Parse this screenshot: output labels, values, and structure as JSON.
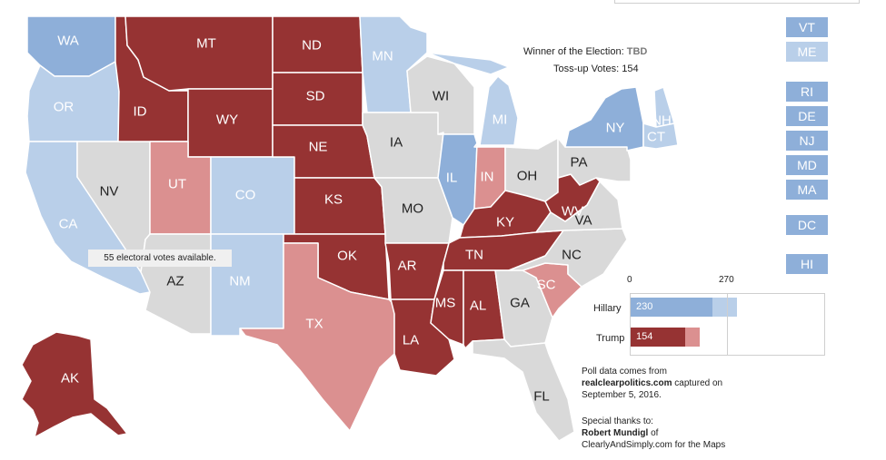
{
  "colors": {
    "strong_dem": "#8eafd9",
    "lean_dem": "#b9cfe9",
    "tossup": "#d9d9d9",
    "lean_rep": "#db9090",
    "strong_rep": "#963333"
  },
  "states": [
    {
      "abbr": "WA",
      "rating": "strong_dem"
    },
    {
      "abbr": "OR",
      "rating": "lean_dem"
    },
    {
      "abbr": "CA",
      "rating": "lean_dem"
    },
    {
      "abbr": "NV",
      "rating": "tossup"
    },
    {
      "abbr": "ID",
      "rating": "strong_rep"
    },
    {
      "abbr": "MT",
      "rating": "strong_rep"
    },
    {
      "abbr": "WY",
      "rating": "strong_rep"
    },
    {
      "abbr": "UT",
      "rating": "lean_rep"
    },
    {
      "abbr": "CO",
      "rating": "lean_dem"
    },
    {
      "abbr": "AZ",
      "rating": "tossup"
    },
    {
      "abbr": "NM",
      "rating": "lean_dem"
    },
    {
      "abbr": "ND",
      "rating": "strong_rep"
    },
    {
      "abbr": "SD",
      "rating": "strong_rep"
    },
    {
      "abbr": "NE",
      "rating": "strong_rep"
    },
    {
      "abbr": "KS",
      "rating": "strong_rep"
    },
    {
      "abbr": "OK",
      "rating": "strong_rep"
    },
    {
      "abbr": "TX",
      "rating": "lean_rep"
    },
    {
      "abbr": "MN",
      "rating": "lean_dem"
    },
    {
      "abbr": "IA",
      "rating": "tossup"
    },
    {
      "abbr": "MO",
      "rating": "tossup"
    },
    {
      "abbr": "AR",
      "rating": "strong_rep"
    },
    {
      "abbr": "LA",
      "rating": "strong_rep"
    },
    {
      "abbr": "WI",
      "rating": "tossup"
    },
    {
      "abbr": "IL",
      "rating": "strong_dem"
    },
    {
      "abbr": "MI",
      "rating": "lean_dem"
    },
    {
      "abbr": "IN",
      "rating": "lean_rep"
    },
    {
      "abbr": "OH",
      "rating": "tossup"
    },
    {
      "abbr": "KY",
      "rating": "strong_rep"
    },
    {
      "abbr": "TN",
      "rating": "strong_rep"
    },
    {
      "abbr": "MS",
      "rating": "strong_rep"
    },
    {
      "abbr": "AL",
      "rating": "strong_rep"
    },
    {
      "abbr": "GA",
      "rating": "tossup"
    },
    {
      "abbr": "FL",
      "rating": "tossup"
    },
    {
      "abbr": "SC",
      "rating": "lean_rep"
    },
    {
      "abbr": "NC",
      "rating": "tossup"
    },
    {
      "abbr": "VA",
      "rating": "tossup"
    },
    {
      "abbr": "WV",
      "rating": "strong_rep"
    },
    {
      "abbr": "PA",
      "rating": "tossup"
    },
    {
      "abbr": "NY",
      "rating": "strong_dem"
    },
    {
      "abbr": "NH",
      "rating": "lean_dem"
    },
    {
      "abbr": "CT",
      "rating": "lean_dem"
    },
    {
      "abbr": "AK",
      "rating": "strong_rep"
    }
  ],
  "small_states": [
    {
      "abbr": "VT",
      "rating": "strong_dem"
    },
    {
      "abbr": "ME",
      "rating": "lean_dem"
    },
    {
      "abbr": "RI",
      "rating": "strong_dem"
    },
    {
      "abbr": "DE",
      "rating": "strong_dem"
    },
    {
      "abbr": "NJ",
      "rating": "strong_dem"
    },
    {
      "abbr": "MD",
      "rating": "strong_dem"
    },
    {
      "abbr": "MA",
      "rating": "strong_dem"
    },
    {
      "abbr": "DC",
      "rating": "strong_dem"
    },
    {
      "abbr": "HI",
      "rating": "strong_dem"
    }
  ],
  "summary": {
    "winner_label": "Winner of the Election:",
    "winner_value": "TBD",
    "tossup_label": "Toss-up Votes:",
    "tossup_value": "154",
    "available_note": "55 electoral votes available."
  },
  "tally": {
    "axis_min": 0,
    "axis_max": 270,
    "axis_min_label": "0",
    "axis_max_label": "270",
    "candidates": [
      {
        "name": "Hillary",
        "strong": 230,
        "total": 298,
        "strong_label": "230"
      },
      {
        "name": "Trump",
        "strong": 154,
        "total": 194,
        "strong_label": "154"
      }
    ]
  },
  "credits": {
    "line1": "Poll data comes from",
    "source": "realclearpolitics.com",
    "line2": " captured on",
    "line3": "September 5, 2016.",
    "line4": "Special thanks to:",
    "person": "Robert Mundigl",
    "line5": " of",
    "line6": "ClearlyAndSimply.com for the Maps"
  }
}
